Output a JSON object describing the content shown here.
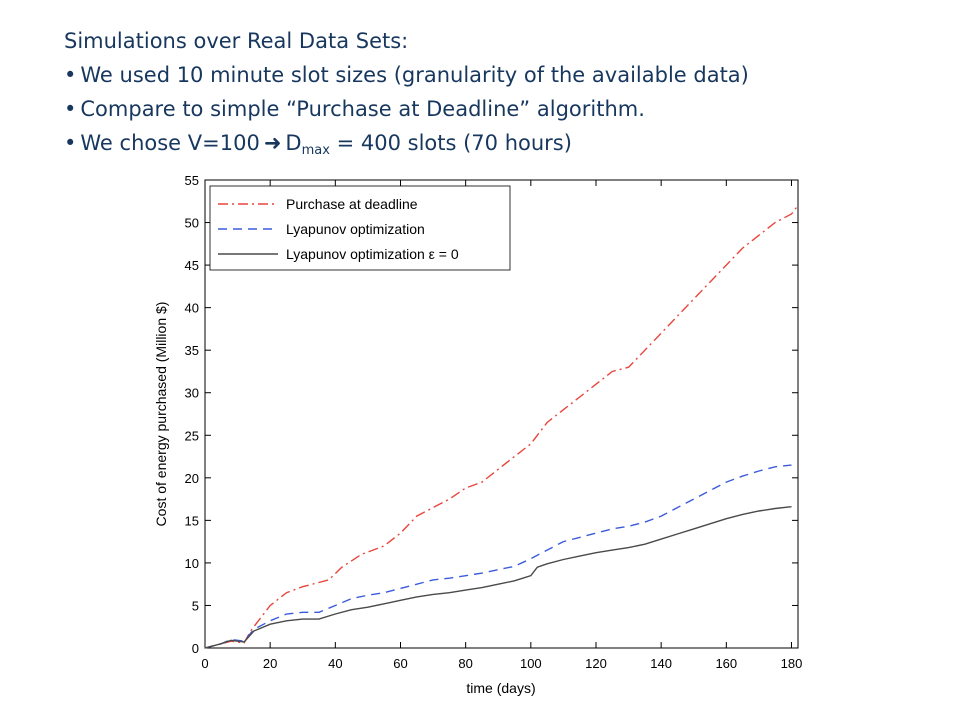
{
  "slide": {
    "heading": "Simulations over Real Data Sets:",
    "bullets": {
      "b1": "We used 10 minute slot sizes (granularity of the available data)",
      "b2": "Compare to simple “Purchase at Deadline” algorithm.",
      "b3_pre": "We chose V=100",
      "b3_arrow": "➜",
      "b3_d": "D",
      "b3_sub": "max",
      "b3_post": " = 400 slots (70 hours)"
    }
  },
  "chart_data": {
    "type": "line",
    "xlabel": "time (days)",
    "ylabel": "Cost of energy purchased (Million $)",
    "xlim": [
      0,
      182
    ],
    "ylim": [
      0,
      55
    ],
    "xticks": [
      0,
      20,
      40,
      60,
      80,
      100,
      120,
      140,
      160,
      180
    ],
    "yticks": [
      0,
      5,
      10,
      15,
      20,
      25,
      30,
      35,
      40,
      45,
      50,
      55
    ],
    "grid": false,
    "legend_position": "top-left",
    "series": [
      {
        "name": "Purchase at deadline",
        "color": "#e8453c",
        "dash": "dashdot",
        "points": [
          [
            0,
            0
          ],
          [
            5,
            0.5
          ],
          [
            8,
            0.8
          ],
          [
            12,
            0.6
          ],
          [
            14,
            2
          ],
          [
            17,
            3.5
          ],
          [
            20,
            5
          ],
          [
            25,
            6.5
          ],
          [
            30,
            7.2
          ],
          [
            38,
            8
          ],
          [
            42,
            9.5
          ],
          [
            48,
            11
          ],
          [
            55,
            12
          ],
          [
            60,
            13.5
          ],
          [
            65,
            15.5
          ],
          [
            70,
            16.5
          ],
          [
            75,
            17.5
          ],
          [
            80,
            18.8
          ],
          [
            85,
            19.5
          ],
          [
            90,
            21
          ],
          [
            95,
            22.5
          ],
          [
            100,
            24
          ],
          [
            105,
            26.5
          ],
          [
            110,
            28
          ],
          [
            115,
            29.5
          ],
          [
            120,
            31
          ],
          [
            125,
            32.5
          ],
          [
            130,
            33
          ],
          [
            135,
            35
          ],
          [
            140,
            37
          ],
          [
            145,
            39
          ],
          [
            150,
            41
          ],
          [
            155,
            43
          ],
          [
            160,
            45
          ],
          [
            165,
            47
          ],
          [
            170,
            48.5
          ],
          [
            175,
            50
          ],
          [
            180,
            51
          ],
          [
            182,
            52
          ]
        ]
      },
      {
        "name": "Lyapunov optimization",
        "color": "#3b5bdb",
        "dash": "dash",
        "points": [
          [
            0,
            0
          ],
          [
            5,
            0.5
          ],
          [
            8,
            1
          ],
          [
            12,
            0.8
          ],
          [
            15,
            2.2
          ],
          [
            20,
            3.2
          ],
          [
            25,
            4
          ],
          [
            30,
            4.2
          ],
          [
            35,
            4.2
          ],
          [
            40,
            5
          ],
          [
            45,
            5.8
          ],
          [
            50,
            6.2
          ],
          [
            55,
            6.5
          ],
          [
            60,
            7
          ],
          [
            65,
            7.5
          ],
          [
            70,
            8
          ],
          [
            75,
            8.2
          ],
          [
            80,
            8.5
          ],
          [
            85,
            8.8
          ],
          [
            90,
            9.2
          ],
          [
            95,
            9.6
          ],
          [
            100,
            10.5
          ],
          [
            105,
            11.5
          ],
          [
            110,
            12.5
          ],
          [
            115,
            13
          ],
          [
            120,
            13.5
          ],
          [
            125,
            14
          ],
          [
            130,
            14.3
          ],
          [
            135,
            14.8
          ],
          [
            140,
            15.5
          ],
          [
            145,
            16.5
          ],
          [
            150,
            17.5
          ],
          [
            155,
            18.5
          ],
          [
            160,
            19.5
          ],
          [
            165,
            20.2
          ],
          [
            170,
            20.8
          ],
          [
            175,
            21.3
          ],
          [
            180,
            21.5
          ]
        ]
      },
      {
        "name": "Lyapunov optimization ε = 0",
        "color": "#4a4a4a",
        "dash": "solid",
        "points": [
          [
            0,
            0
          ],
          [
            5,
            0.5
          ],
          [
            8,
            0.9
          ],
          [
            12,
            0.7
          ],
          [
            15,
            2
          ],
          [
            20,
            2.8
          ],
          [
            25,
            3.2
          ],
          [
            30,
            3.4
          ],
          [
            35,
            3.4
          ],
          [
            40,
            4
          ],
          [
            45,
            4.5
          ],
          [
            50,
            4.8
          ],
          [
            55,
            5.2
          ],
          [
            60,
            5.6
          ],
          [
            65,
            6
          ],
          [
            70,
            6.3
          ],
          [
            75,
            6.5
          ],
          [
            80,
            6.8
          ],
          [
            85,
            7.1
          ],
          [
            90,
            7.5
          ],
          [
            95,
            7.9
          ],
          [
            100,
            8.5
          ],
          [
            102,
            9.5
          ],
          [
            105,
            9.9
          ],
          [
            110,
            10.4
          ],
          [
            115,
            10.8
          ],
          [
            120,
            11.2
          ],
          [
            125,
            11.5
          ],
          [
            130,
            11.8
          ],
          [
            135,
            12.2
          ],
          [
            140,
            12.8
          ],
          [
            145,
            13.4
          ],
          [
            150,
            14
          ],
          [
            155,
            14.6
          ],
          [
            160,
            15.2
          ],
          [
            165,
            15.7
          ],
          [
            170,
            16.1
          ],
          [
            175,
            16.4
          ],
          [
            180,
            16.6
          ]
        ]
      }
    ]
  }
}
